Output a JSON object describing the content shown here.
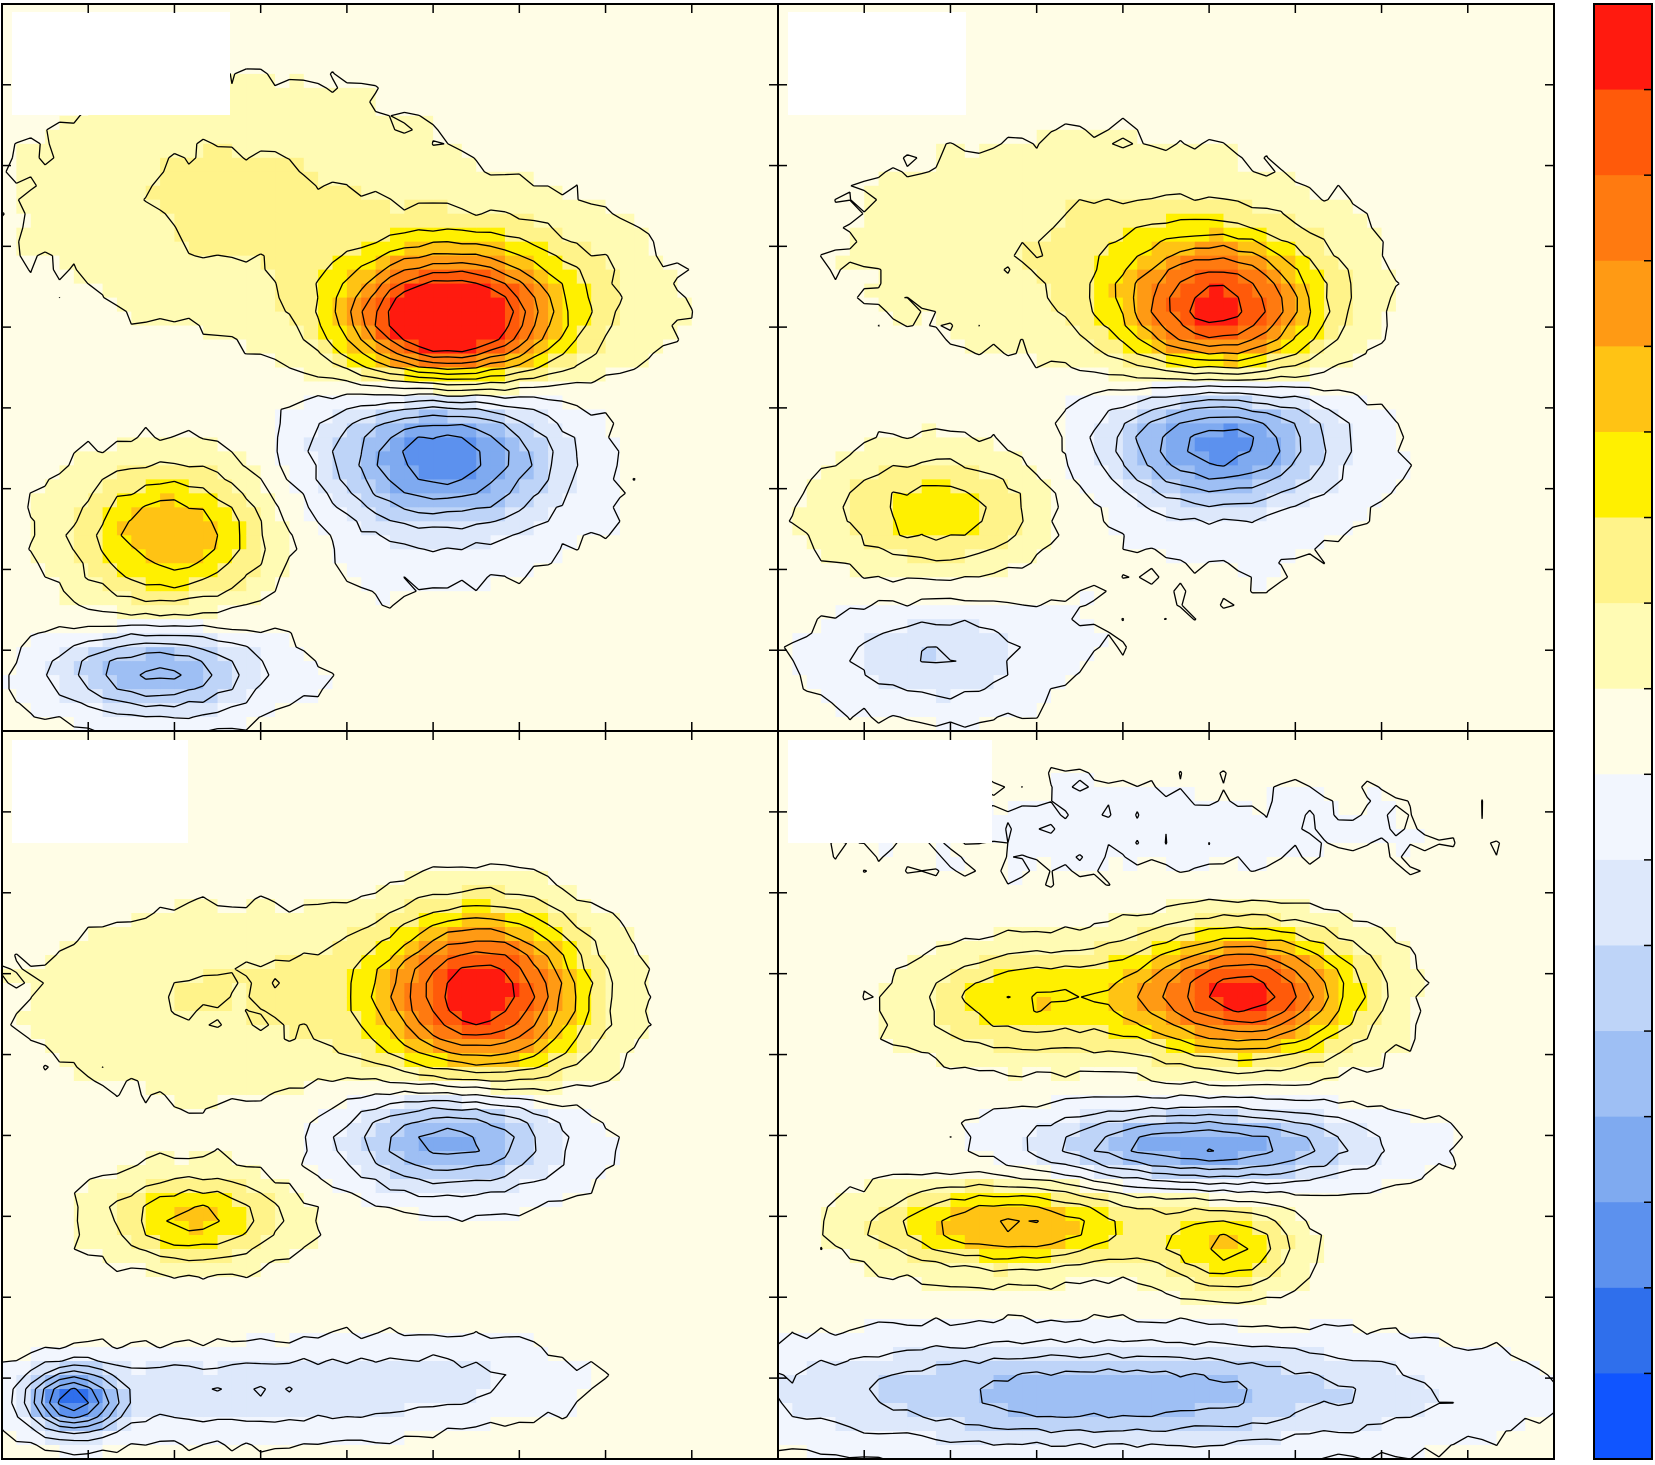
{
  "chart_data": {
    "type": "heatmap",
    "description_free": true,
    "grid": false,
    "legend": "right",
    "colorbar": {
      "position": "right",
      "colors": [
        "#ff1a0f",
        "#ff5a0a",
        "#ff7a10",
        "#ff9a14",
        "#ffc314",
        "#fff000",
        "#fff38a",
        "#fffbb4",
        "#fffde6",
        "#f2f6fe",
        "#dde8fb",
        "#bed4f8",
        "#9ebff4",
        "#7faaf0",
        "#5c91ee",
        "#2f6fec",
        "#1055ff"
      ]
    },
    "panels": [
      {
        "id": "a",
        "blobs": [
          {
            "x": 0.3,
            "y": 0.73,
            "sx": 0.17,
            "sy": 0.11,
            "amp": 0.22
          },
          {
            "x": 0.57,
            "y": 0.56,
            "sx": 0.09,
            "sy": 0.06,
            "amp": 1.0
          },
          {
            "x": 0.64,
            "y": 0.6,
            "sx": 0.13,
            "sy": 0.08,
            "amp": 0.3
          },
          {
            "x": 0.57,
            "y": 0.38,
            "sx": 0.1,
            "sy": 0.07,
            "amp": -0.72
          },
          {
            "x": 0.22,
            "y": 0.27,
            "sx": 0.09,
            "sy": 0.07,
            "amp": 0.55
          },
          {
            "x": 0.2,
            "y": 0.08,
            "sx": 0.09,
            "sy": 0.04,
            "amp": -0.55
          },
          {
            "x": 0.46,
            "y": 0.27,
            "sx": 0.25,
            "sy": 0.16,
            "amp": -0.05
          }
        ]
      },
      {
        "id": "b",
        "blobs": [
          {
            "x": 0.38,
            "y": 0.67,
            "sx": 0.2,
            "sy": 0.1,
            "amp": 0.18
          },
          {
            "x": 0.57,
            "y": 0.58,
            "sx": 0.09,
            "sy": 0.07,
            "amp": 0.88
          },
          {
            "x": 0.57,
            "y": 0.4,
            "sx": 0.1,
            "sy": 0.06,
            "amp": -0.72
          },
          {
            "x": 0.21,
            "y": 0.3,
            "sx": 0.1,
            "sy": 0.06,
            "amp": 0.4
          },
          {
            "x": 0.2,
            "y": 0.1,
            "sx": 0.1,
            "sy": 0.05,
            "amp": -0.28
          },
          {
            "x": 0.48,
            "y": 0.25,
            "sx": 0.25,
            "sy": 0.12,
            "amp": -0.06
          }
        ]
      },
      {
        "id": "c",
        "blobs": [
          {
            "x": 0.32,
            "y": 0.64,
            "sx": 0.2,
            "sy": 0.1,
            "amp": 0.2
          },
          {
            "x": 0.62,
            "y": 0.64,
            "sx": 0.09,
            "sy": 0.08,
            "amp": 0.95
          },
          {
            "x": 0.58,
            "y": 0.44,
            "sx": 0.1,
            "sy": 0.05,
            "amp": -0.62
          },
          {
            "x": 0.25,
            "y": 0.33,
            "sx": 0.08,
            "sy": 0.04,
            "amp": 0.45
          },
          {
            "x": 0.09,
            "y": 0.08,
            "sx": 0.04,
            "sy": 0.03,
            "amp": -0.75
          },
          {
            "x": 0.3,
            "y": 0.09,
            "sx": 0.16,
            "sy": 0.04,
            "amp": -0.28
          },
          {
            "x": 0.58,
            "y": 0.11,
            "sx": 0.12,
            "sy": 0.04,
            "amp": -0.18
          },
          {
            "x": 0.5,
            "y": 0.8,
            "sx": 0.35,
            "sy": 0.1,
            "amp": -0.05
          }
        ]
      },
      {
        "id": "d",
        "blobs": [
          {
            "x": 0.32,
            "y": 0.63,
            "sx": 0.1,
            "sy": 0.05,
            "amp": 0.4
          },
          {
            "x": 0.6,
            "y": 0.64,
            "sx": 0.1,
            "sy": 0.06,
            "amp": 0.95
          },
          {
            "x": 0.55,
            "y": 0.43,
            "sx": 0.15,
            "sy": 0.035,
            "amp": -0.65
          },
          {
            "x": 0.3,
            "y": 0.32,
            "sx": 0.12,
            "sy": 0.04,
            "amp": 0.55
          },
          {
            "x": 0.58,
            "y": 0.29,
            "sx": 0.06,
            "sy": 0.04,
            "amp": 0.42
          },
          {
            "x": 0.42,
            "y": 0.09,
            "sx": 0.3,
            "sy": 0.05,
            "amp": -0.5
          },
          {
            "x": 0.5,
            "y": 0.86,
            "sx": 0.4,
            "sy": 0.08,
            "amp": -0.08
          }
        ]
      }
    ]
  }
}
